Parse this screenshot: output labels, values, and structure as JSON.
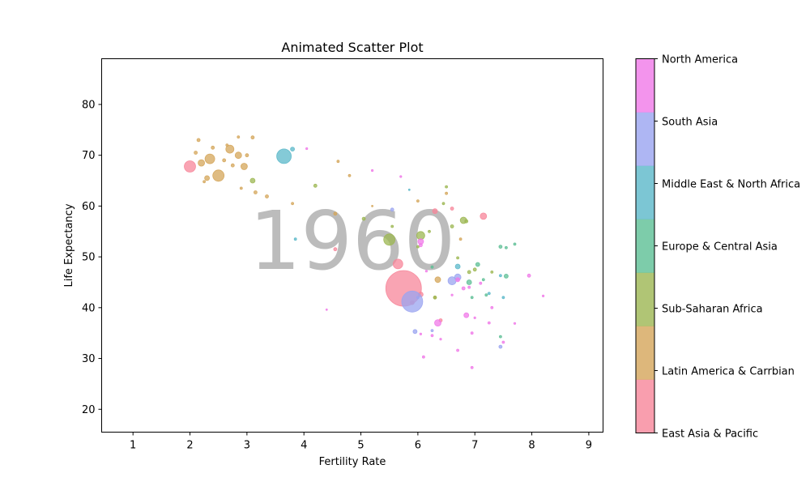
{
  "chart_data": {
    "type": "scatter",
    "title": "Animated Scatter Plot",
    "xlabel": "Fertility Rate",
    "ylabel": "Life Expectancy",
    "year": "1960",
    "xlim": [
      0.45,
      9.25
    ],
    "ylim": [
      15.5,
      89
    ],
    "x_ticks": [
      1,
      2,
      3,
      4,
      5,
      6,
      7,
      8,
      9
    ],
    "y_ticks": [
      20,
      30,
      40,
      50,
      60,
      70,
      80
    ],
    "grid": false,
    "legend_placement": "right colorbar",
    "regions": [
      {
        "name": "East Asia & Pacific",
        "color": "#f7869a"
      },
      {
        "name": "Latin America & Carrbian",
        "color": "#d4a55a"
      },
      {
        "name": "Sub-Saharan Africa",
        "color": "#9cb752"
      },
      {
        "name": "Europe & Central Asia",
        "color": "#5dbf95"
      },
      {
        "name": "Middle East & North Africa",
        "color": "#5bb8c9"
      },
      {
        "name": "South Asia",
        "color": "#9aa4f0"
      },
      {
        "name": "North America",
        "color": "#f079e8"
      }
    ],
    "series": [
      {
        "name": "East Asia & Pacific",
        "points": [
          [
            5.75,
            43.8,
            22
          ],
          [
            5.65,
            48.6,
            6
          ],
          [
            2.0,
            67.8,
            7
          ],
          [
            6.05,
            42.6,
            3
          ],
          [
            7.15,
            58.0,
            4
          ],
          [
            6.3,
            59.0,
            3
          ],
          [
            4.55,
            51.5,
            2
          ],
          [
            6.6,
            59.5,
            2
          ],
          [
            5.9,
            41.0,
            2.5
          ],
          [
            6.4,
            37.5,
            2
          ]
        ]
      },
      {
        "name": "Latin America & Carrbian",
        "points": [
          [
            2.5,
            66.0,
            7
          ],
          [
            2.35,
            69.3,
            6
          ],
          [
            2.7,
            71.2,
            5
          ],
          [
            2.85,
            70.0,
            4
          ],
          [
            2.2,
            68.5,
            4
          ],
          [
            2.95,
            67.8,
            4
          ],
          [
            2.1,
            70.5,
            2
          ],
          [
            2.3,
            65.5,
            3
          ],
          [
            2.6,
            69.0,
            2
          ],
          [
            2.75,
            68.0,
            2
          ],
          [
            2.4,
            71.5,
            2
          ],
          [
            3.1,
            73.5,
            2
          ],
          [
            2.85,
            73.6,
            1.5
          ],
          [
            2.15,
            73.0,
            2
          ],
          [
            3.0,
            70.0,
            2
          ],
          [
            2.9,
            63.5,
            1.5
          ],
          [
            3.15,
            62.7,
            2
          ],
          [
            3.35,
            61.9,
            2
          ],
          [
            2.25,
            64.8,
            1.5
          ],
          [
            2.65,
            72.0,
            1.5
          ],
          [
            4.6,
            68.8,
            1.5
          ],
          [
            4.8,
            66.0,
            1.5
          ],
          [
            6.35,
            45.5,
            3.5
          ],
          [
            6.75,
            53.5,
            1.5
          ],
          [
            6.5,
            62.5,
            1.5
          ],
          [
            6.0,
            61.0,
            1.5
          ],
          [
            4.55,
            58.5,
            2
          ],
          [
            3.8,
            60.5,
            1.5
          ],
          [
            6.3,
            42.0,
            1.5
          ],
          [
            5.2,
            60.0,
            1
          ]
        ]
      },
      {
        "name": "Sub-Saharan Africa",
        "points": [
          [
            5.5,
            53.4,
            7
          ],
          [
            6.05,
            54.2,
            5
          ],
          [
            6.8,
            57.2,
            4
          ],
          [
            6.9,
            47.0,
            2
          ],
          [
            7.0,
            47.5,
            2
          ],
          [
            6.3,
            42.0,
            2
          ],
          [
            6.6,
            56.0,
            2
          ],
          [
            5.05,
            57.5,
            2
          ],
          [
            4.2,
            64.0,
            2
          ],
          [
            6.85,
            57.0,
            2
          ],
          [
            6.5,
            63.8,
            1.5
          ],
          [
            6.7,
            49.8,
            1.5
          ],
          [
            6.2,
            55.0,
            1.5
          ],
          [
            6.45,
            60.5,
            1.5
          ],
          [
            3.1,
            65.0,
            3
          ],
          [
            5.55,
            56.0,
            1.5
          ],
          [
            7.3,
            47.0,
            1.5
          ],
          [
            6.0,
            52.0,
            1.5
          ]
        ]
      },
      {
        "name": "Europe & Central Asia",
        "points": [
          [
            6.9,
            45.0,
            3
          ],
          [
            7.05,
            48.5,
            2.5
          ],
          [
            7.55,
            46.2,
            2.5
          ],
          [
            7.45,
            52.0,
            2
          ],
          [
            7.55,
            51.8,
            1.5
          ],
          [
            7.7,
            52.5,
            1.5
          ],
          [
            6.95,
            42.0,
            1.5
          ],
          [
            7.15,
            45.5,
            1.5
          ],
          [
            7.45,
            34.3,
            1.5
          ],
          [
            6.25,
            48.0,
            1.5
          ],
          [
            7.2,
            42.5,
            1.5
          ]
        ]
      },
      {
        "name": "Middle East & North Africa",
        "points": [
          [
            3.65,
            69.8,
            9
          ],
          [
            3.8,
            71.2,
            2.5
          ],
          [
            6.7,
            48.1,
            3
          ],
          [
            7.45,
            46.3,
            1.5
          ],
          [
            7.25,
            42.8,
            1.5
          ],
          [
            3.85,
            53.5,
            1.5
          ],
          [
            5.85,
            63.2,
            1
          ],
          [
            7.5,
            42.0,
            1.5
          ]
        ]
      },
      {
        "name": "South Asia",
        "points": [
          [
            5.9,
            41.2,
            13
          ],
          [
            6.6,
            45.3,
            5
          ],
          [
            6.7,
            46.0,
            4
          ],
          [
            5.95,
            35.3,
            2.5
          ],
          [
            7.45,
            32.3,
            2
          ],
          [
            5.55,
            59.3,
            2
          ],
          [
            6.0,
            42.0,
            1.5
          ],
          [
            6.25,
            35.5,
            1.5
          ]
        ]
      },
      {
        "name": "North America",
        "points": [
          [
            6.35,
            37.0,
            4
          ],
          [
            6.85,
            38.5,
            3
          ],
          [
            6.05,
            53.0,
            3.5
          ],
          [
            6.05,
            52.3,
            2
          ],
          [
            6.7,
            45.5,
            2.5
          ],
          [
            6.8,
            43.8,
            2
          ],
          [
            6.95,
            35.0,
            1.5
          ],
          [
            7.5,
            33.2,
            1.5
          ],
          [
            6.95,
            28.2,
            1.5
          ],
          [
            6.1,
            30.3,
            1.5
          ],
          [
            6.7,
            31.6,
            1.5
          ],
          [
            7.3,
            40.0,
            1.5
          ],
          [
            7.95,
            46.3,
            2
          ],
          [
            7.1,
            44.8,
            1.5
          ],
          [
            6.25,
            34.5,
            1.5
          ],
          [
            7.25,
            37.0,
            1.5
          ],
          [
            6.4,
            33.8,
            1.2
          ],
          [
            6.15,
            47.2,
            1.2
          ],
          [
            5.2,
            67.0,
            1.2
          ],
          [
            4.05,
            71.3,
            1.2
          ],
          [
            7.7,
            36.9,
            1.2
          ],
          [
            8.2,
            42.3,
            1.2
          ],
          [
            6.05,
            34.8,
            1.2
          ],
          [
            6.9,
            44.0,
            1.5
          ],
          [
            5.7,
            65.8,
            1.2
          ],
          [
            7.0,
            38.0,
            1.2
          ],
          [
            6.6,
            42.5,
            1.2
          ],
          [
            4.4,
            39.6,
            1
          ]
        ]
      }
    ]
  }
}
